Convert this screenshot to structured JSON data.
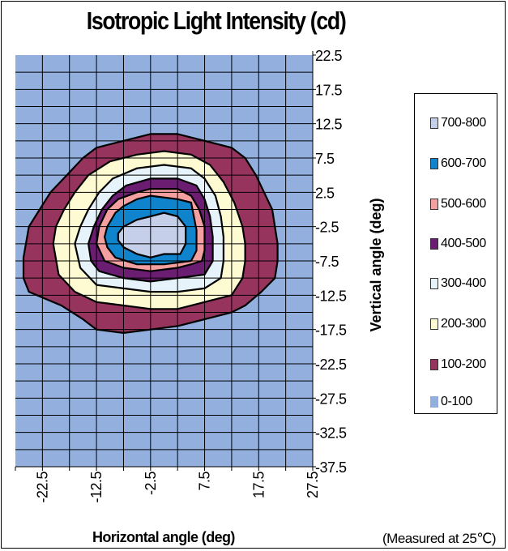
{
  "chart_data": {
    "type": "heatmap",
    "subtype": "filled-contour",
    "title": "Isotropic Light Intensity (cd)",
    "xlabel": "Horizontal angle (deg)",
    "ylabel": "Vertical angle (deg)",
    "note": "(Measured at 25℃)",
    "xlim": [
      -27.5,
      27.5
    ],
    "ylim": [
      -37.5,
      22.5
    ],
    "x_ticks": [
      "-22.5",
      "-12.5",
      "-2.5",
      "7.5",
      "17.5",
      "27.5"
    ],
    "y_ticks": [
      "22.5",
      "17.5",
      "12.5",
      "7.5",
      "2.5",
      "-2.5",
      "-7.5",
      "-12.5",
      "-17.5",
      "-22.5",
      "-27.5",
      "-32.5",
      "-37.5"
    ],
    "grid": true,
    "legend_position": "right",
    "levels": [
      {
        "label": "700-800",
        "color": "#c6cfe9"
      },
      {
        "label": "600-700",
        "color": "#0f84cc"
      },
      {
        "label": "500-600",
        "color": "#f5a0a0"
      },
      {
        "label": "400-500",
        "color": "#6b1d72"
      },
      {
        "label": "300-400",
        "color": "#e7f3fb"
      },
      {
        "label": "200-300",
        "color": "#fefbd2"
      },
      {
        "label": "100-200",
        "color": "#96345e"
      },
      {
        "label": "0-100",
        "color": "#92afde"
      }
    ],
    "contours": [
      {
        "level": "100-200",
        "points": [
          [
            -26,
            -10
          ],
          [
            -26,
            -7
          ],
          [
            -25,
            -2.5
          ],
          [
            -23,
            0
          ],
          [
            -21,
            2.5
          ],
          [
            -18,
            5
          ],
          [
            -15,
            7.5
          ],
          [
            -12.5,
            9
          ],
          [
            -7.5,
            10
          ],
          [
            -2.5,
            11
          ],
          [
            2.5,
            11
          ],
          [
            7.5,
            10
          ],
          [
            12.5,
            9
          ],
          [
            15,
            7.5
          ],
          [
            17,
            5
          ],
          [
            18.5,
            2.5
          ],
          [
            20,
            0
          ],
          [
            20.5,
            -2.5
          ],
          [
            21,
            -5
          ],
          [
            21,
            -7.5
          ],
          [
            20.5,
            -10
          ],
          [
            18,
            -12
          ],
          [
            15,
            -14
          ],
          [
            12.5,
            -15
          ],
          [
            7.5,
            -16
          ],
          [
            2.5,
            -17
          ],
          [
            -2.5,
            -17.5
          ],
          [
            -7.5,
            -18
          ],
          [
            -12.5,
            -17.5
          ],
          [
            -15,
            -16
          ],
          [
            -19,
            -14
          ],
          [
            -22,
            -13
          ],
          [
            -25,
            -12
          ]
        ]
      },
      {
        "level": "200-300",
        "points": [
          [
            -20.5,
            -5
          ],
          [
            -20,
            -2.5
          ],
          [
            -18.5,
            0
          ],
          [
            -16.5,
            2.5
          ],
          [
            -14,
            5
          ],
          [
            -10,
            7
          ],
          [
            -5,
            8
          ],
          [
            0,
            8.5
          ],
          [
            5,
            8
          ],
          [
            8.5,
            6.5
          ],
          [
            11,
            4
          ],
          [
            13,
            1
          ],
          [
            14.5,
            -2.5
          ],
          [
            15,
            -5
          ],
          [
            15,
            -7.5
          ],
          [
            14.5,
            -10
          ],
          [
            12.5,
            -12.5
          ],
          [
            7.5,
            -13.5
          ],
          [
            2.5,
            -14.5
          ],
          [
            -2.5,
            -14.5
          ],
          [
            -7.5,
            -14
          ],
          [
            -12.5,
            -13.5
          ],
          [
            -16.5,
            -12
          ],
          [
            -19.5,
            -9.5
          ]
        ]
      },
      {
        "level": "300-400",
        "points": [
          [
            -16.5,
            -5
          ],
          [
            -15.5,
            -2.5
          ],
          [
            -14,
            0
          ],
          [
            -12,
            2.5
          ],
          [
            -9.5,
            4.5
          ],
          [
            -5,
            6
          ],
          [
            0,
            6.5
          ],
          [
            5,
            6
          ],
          [
            7.5,
            4.5
          ],
          [
            9.5,
            2
          ],
          [
            10.5,
            -1
          ],
          [
            11,
            -4
          ],
          [
            11,
            -7.5
          ],
          [
            10.5,
            -10
          ],
          [
            7.5,
            -11.5
          ],
          [
            2.5,
            -12
          ],
          [
            -2.5,
            -12
          ],
          [
            -7.5,
            -11.5
          ],
          [
            -12.5,
            -11
          ],
          [
            -15.5,
            -8.5
          ]
        ]
      },
      {
        "level": "400-500",
        "points": [
          [
            -14,
            -5
          ],
          [
            -13,
            -2.5
          ],
          [
            -11.5,
            0
          ],
          [
            -9.5,
            2
          ],
          [
            -7,
            3.5
          ],
          [
            -2.5,
            4.5
          ],
          [
            2.5,
            4.5
          ],
          [
            6,
            3.5
          ],
          [
            7.5,
            1.5
          ],
          [
            8.5,
            -1
          ],
          [
            9,
            -4
          ],
          [
            9,
            -7.5
          ],
          [
            7.5,
            -9.5
          ],
          [
            2.5,
            -10
          ],
          [
            -2.5,
            -10.5
          ],
          [
            -7.5,
            -10
          ],
          [
            -12,
            -9
          ],
          [
            -13.5,
            -7.5
          ]
        ]
      },
      {
        "level": "500-600",
        "points": [
          [
            -12.5,
            -5
          ],
          [
            -12,
            -2.5
          ],
          [
            -10.5,
            0
          ],
          [
            -8.5,
            1.5
          ],
          [
            -5,
            2.5
          ],
          [
            -2.5,
            3
          ],
          [
            2.5,
            3
          ],
          [
            5,
            2
          ],
          [
            6.5,
            0
          ],
          [
            7.5,
            -2.5
          ],
          [
            7.5,
            -6
          ],
          [
            7,
            -7.5
          ],
          [
            5,
            -8
          ],
          [
            2.5,
            -8.5
          ],
          [
            -2.5,
            -9
          ],
          [
            -7.5,
            -8.5
          ],
          [
            -11,
            -7.5
          ]
        ]
      },
      {
        "level": "600-700",
        "points": [
          [
            -11,
            -4
          ],
          [
            -10.5,
            -2.5
          ],
          [
            -9,
            -0.5
          ],
          [
            -7.5,
            0.5
          ],
          [
            -5,
            1.5
          ],
          [
            -2.5,
            2
          ],
          [
            2.5,
            1.5
          ],
          [
            5,
            1
          ],
          [
            5.5,
            -1
          ],
          [
            6,
            -3
          ],
          [
            6,
            -6
          ],
          [
            5,
            -7.5
          ],
          [
            0,
            -8
          ],
          [
            -5,
            -8
          ],
          [
            -9,
            -7
          ],
          [
            -10.5,
            -5.5
          ]
        ]
      },
      {
        "level": "700-800",
        "points": [
          [
            -8.5,
            -3.5
          ],
          [
            -7.5,
            -2.5
          ],
          [
            -5,
            -1.5
          ],
          [
            -2.5,
            -1
          ],
          [
            0,
            -0.5
          ],
          [
            2.5,
            -1
          ],
          [
            4,
            -2.5
          ],
          [
            4,
            -5
          ],
          [
            3,
            -6.5
          ],
          [
            0,
            -6.5
          ],
          [
            -2.5,
            -7
          ],
          [
            -5,
            -6.5
          ],
          [
            -7.5,
            -5.5
          ],
          [
            -8.5,
            -4.5
          ]
        ]
      }
    ]
  }
}
